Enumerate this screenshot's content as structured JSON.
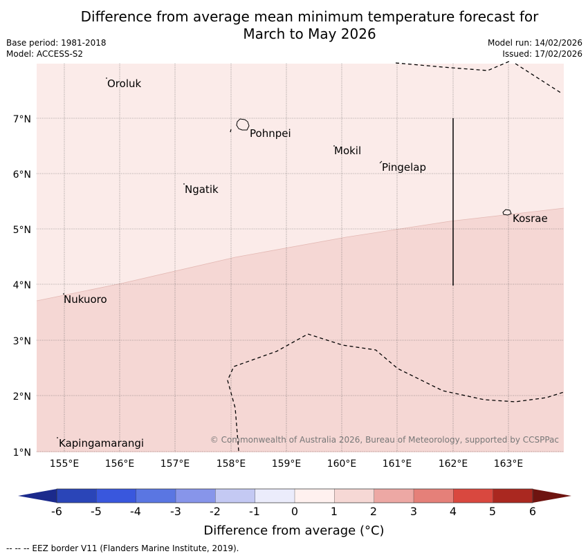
{
  "header": {
    "title_line1": "Difference from average mean minimum temperature forecast for",
    "title_line2": "March to May 2026",
    "base_period": "Base period: 1981-2018",
    "model": "Model: ACCESS-S2",
    "model_run": "Model run: 14/02/2026",
    "issued": "Issued: 17/02/2026"
  },
  "map": {
    "longitude_labels": [
      "155°E",
      "156°E",
      "157°E",
      "158°E",
      "159°E",
      "160°E",
      "161°E",
      "162°E",
      "163°E"
    ],
    "latitude_labels": [
      "7°N",
      "6°N",
      "5°N",
      "4°N",
      "3°N",
      "2°N",
      "1°N"
    ],
    "places": [
      "Oroluk",
      "Pohnpei",
      "Mokil",
      "Pingelap",
      "Ngatik",
      "Kosrae",
      "Nukuoro",
      "Kapingamarangi"
    ],
    "copyright": "© Commonwealth of Australia 2026, Bureau of Meteorology, supported by CCSPPac",
    "colors": {
      "zone_0_1": "#fbebe9",
      "zone_1_2": "#f5d7d4",
      "grid": "#555555"
    }
  },
  "colorbar": {
    "ticks": [
      "-6",
      "-5",
      "-4",
      "-3",
      "-2",
      "-1",
      "0",
      "1",
      "2",
      "3",
      "4",
      "5",
      "6"
    ],
    "colors": [
      "#1b2a8c",
      "#2a45b8",
      "#3957dd",
      "#5a76e2",
      "#8795ea",
      "#c4c9f3",
      "#ebecfb",
      "#fff1ef",
      "#f6d8d5",
      "#eda8a4",
      "#e58079",
      "#d9483f",
      "#aa2820",
      "#6e1410"
    ],
    "label": "Difference from average (°C)"
  },
  "footnote": "--  --  -- EEZ border V11 (Flanders Marine Institute, 2019)."
}
